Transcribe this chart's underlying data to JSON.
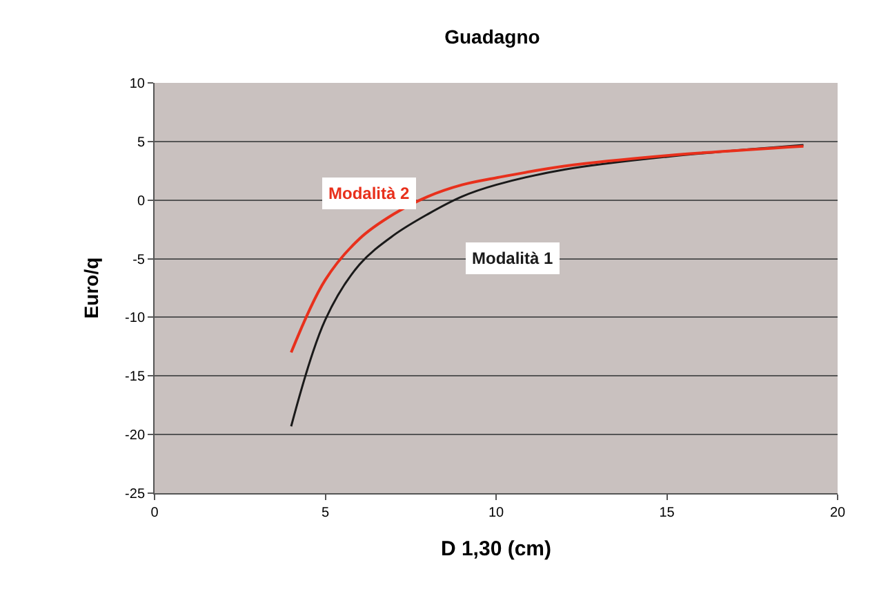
{
  "chart_data": {
    "type": "line",
    "title": "Guadagno",
    "xlabel": "D 1,30 (cm)",
    "ylabel": "Euro/q",
    "xlim": [
      0,
      20
    ],
    "xticks": [
      0,
      5,
      10,
      15,
      20
    ],
    "ylim": [
      -25,
      10
    ],
    "yticks": [
      -25,
      -20,
      -15,
      -10,
      -5,
      0,
      5,
      10
    ],
    "grid": "y",
    "legend": false,
    "marker": "none",
    "line_style": "solid",
    "series": [
      {
        "name": "Modalità 1",
        "color": "#1a1a1a",
        "x": [
          4,
          5,
          6,
          7,
          8,
          9,
          10,
          12,
          15,
          19
        ],
        "values": [
          -19.3,
          -10.2,
          -5.5,
          -3,
          -1.2,
          0.3,
          1.3,
          2.6,
          3.7,
          4.7
        ]
      },
      {
        "name": "Modalità 2",
        "color": "#e8301c",
        "x": [
          4,
          5,
          6,
          7,
          8,
          9,
          10,
          12,
          15,
          19
        ],
        "values": [
          -13,
          -6.8,
          -3.3,
          -1.2,
          0.3,
          1.3,
          1.9,
          2.9,
          3.8,
          4.6
        ]
      }
    ]
  }
}
